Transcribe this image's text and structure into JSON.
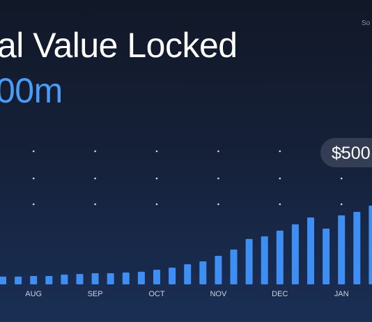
{
  "chart_data": {
    "type": "bar",
    "title": "al Value Locked",
    "subtitle": "00m",
    "annotation": "$500",
    "source": "So",
    "categories": [
      null,
      null,
      "AUG",
      null,
      null,
      null,
      "SEP",
      null,
      null,
      null,
      "OCT",
      null,
      null,
      null,
      "NOV",
      null,
      null,
      null,
      "DEC",
      null,
      null,
      null,
      "JAN",
      null,
      null
    ],
    "values": [
      49,
      49,
      53,
      53,
      62,
      66,
      71,
      71,
      75,
      80,
      93,
      106,
      128,
      146,
      181,
      221,
      288,
      305,
      341,
      381,
      425,
      354,
      438,
      460,
      500
    ],
    "color": "#3f8ef4",
    "ylim": [
      0,
      500
    ],
    "grid": true
  }
}
